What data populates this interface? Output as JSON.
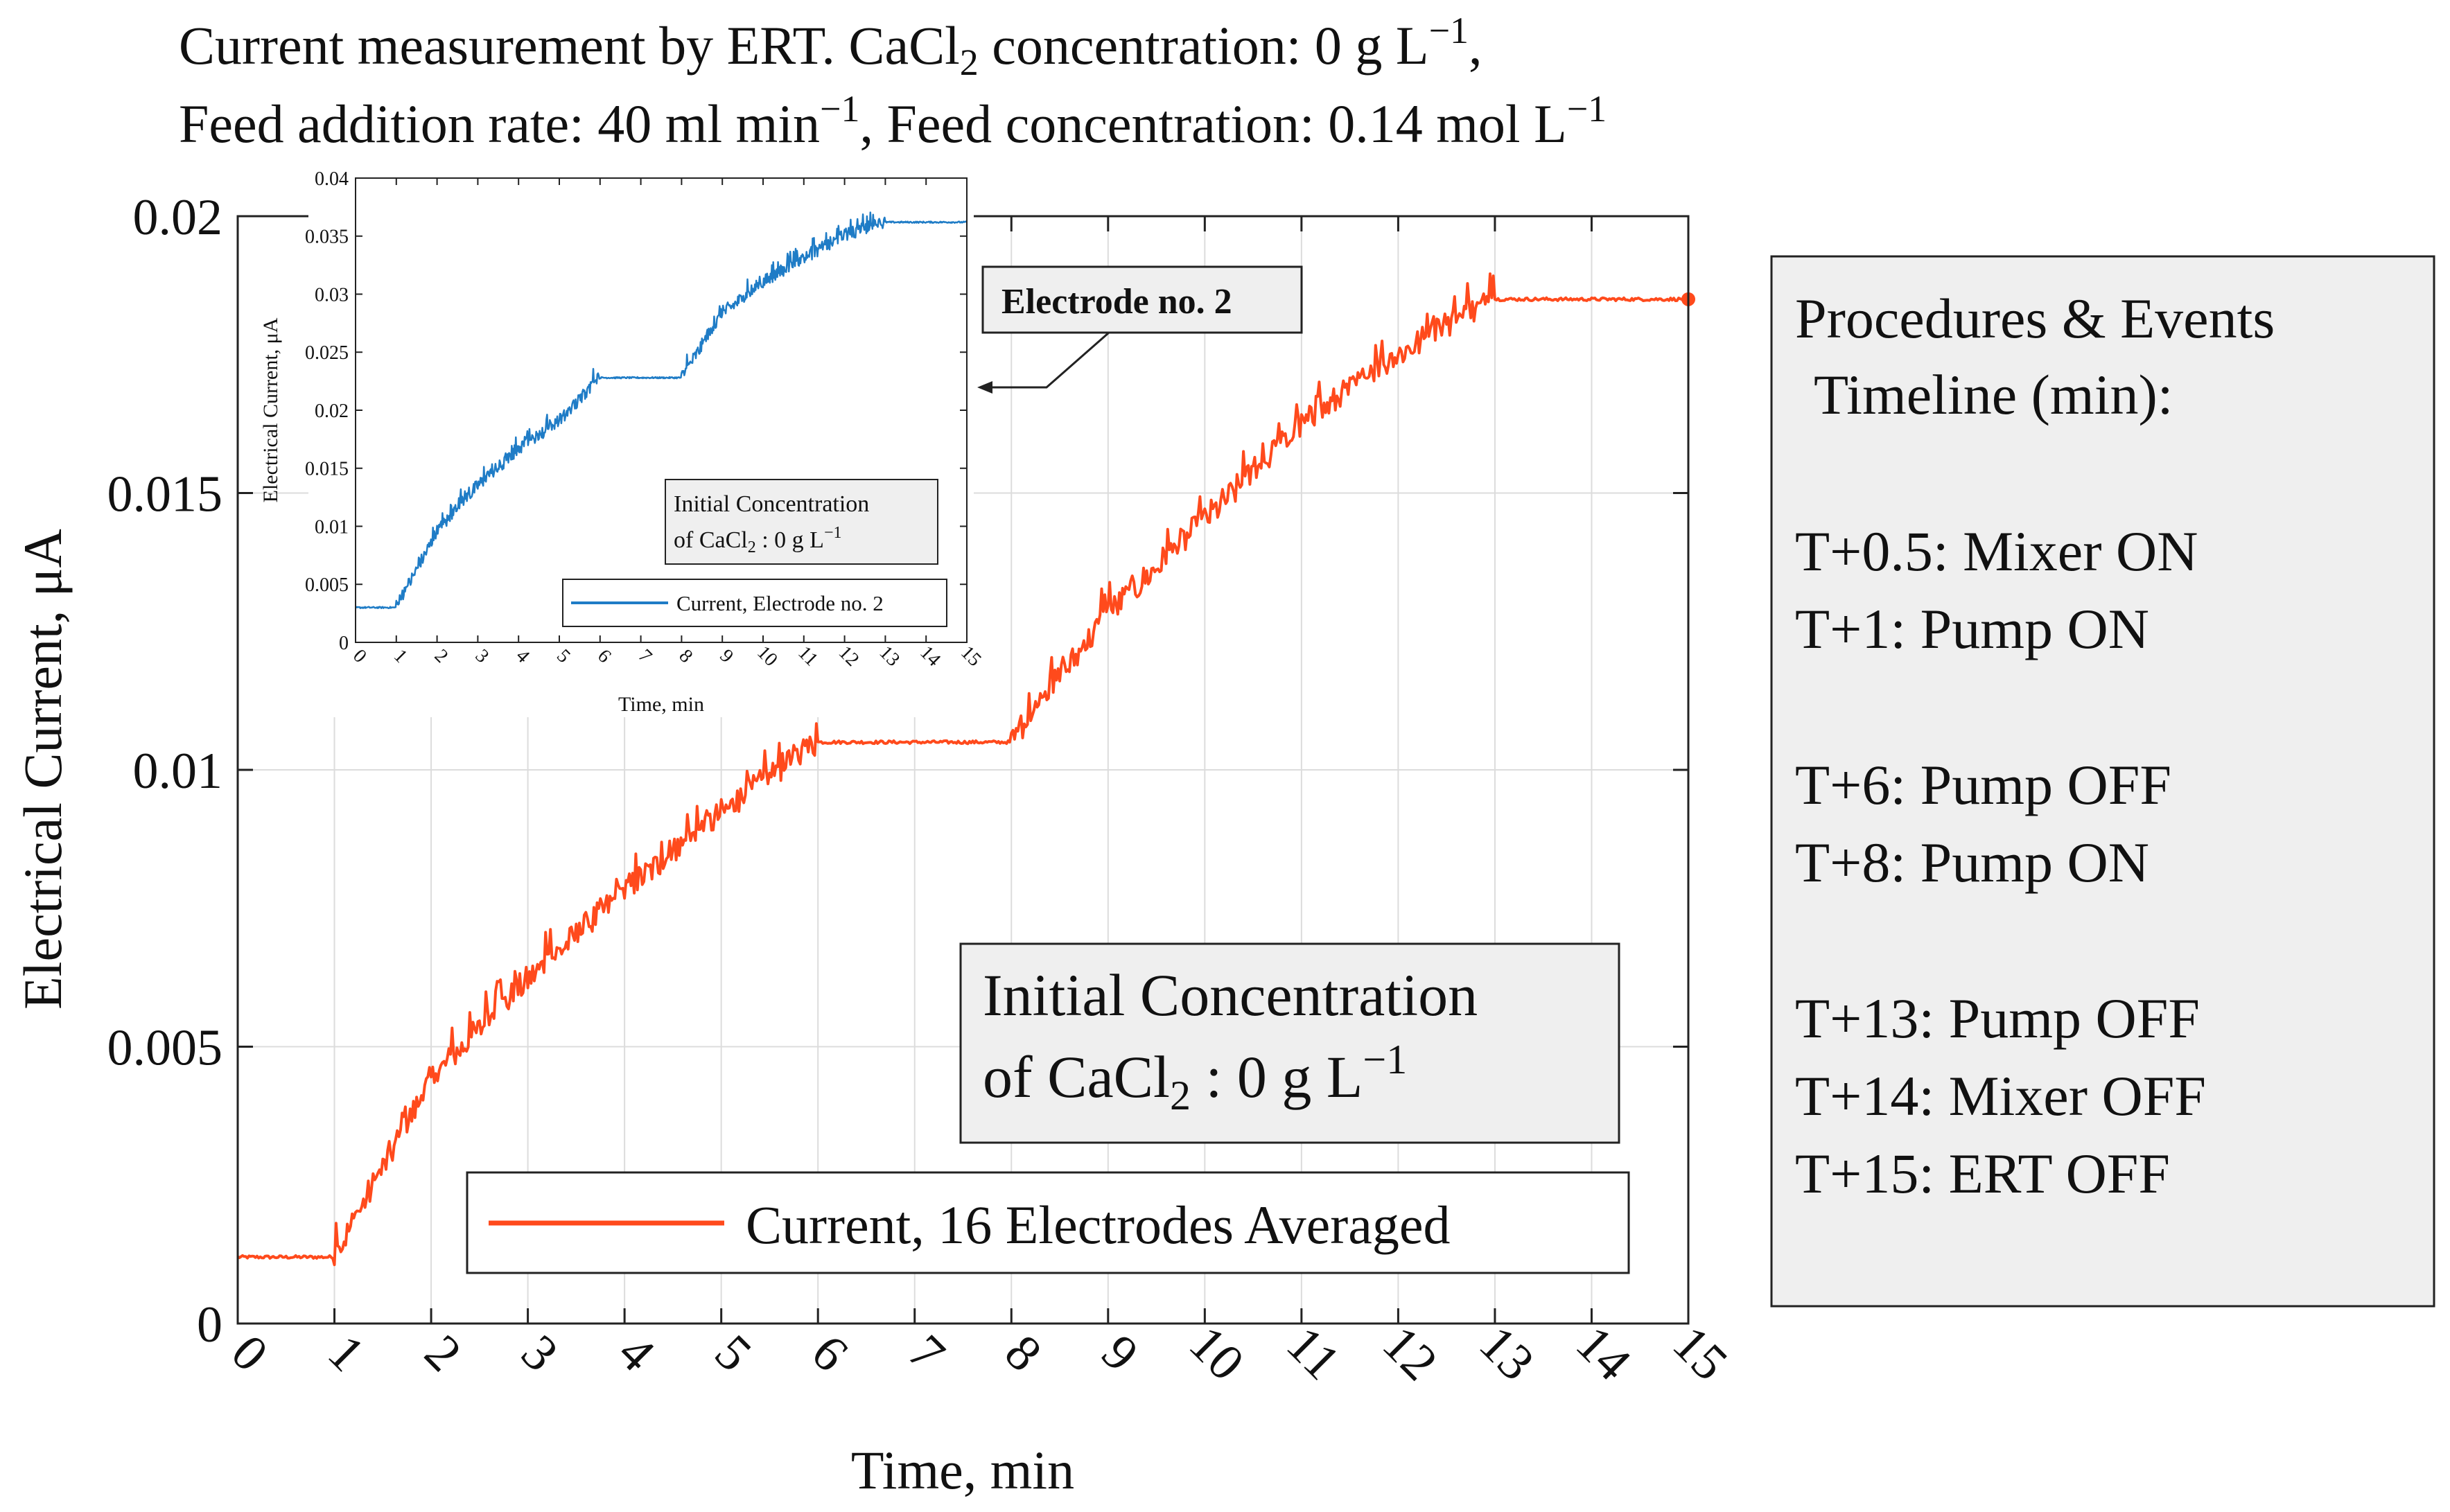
{
  "title_line1": "Current measurement by ERT. CaCl",
  "title_line1_sub": "2",
  "title_line1_rest": " concentration: 0 g L",
  "title_line1_sup": "−1",
  "title_line1_end": ",",
  "title_line2": "Feed addition rate: 40 ml min",
  "title_line2_sup": "−1",
  "title_line2_mid": ", Feed concentration: 0.14 mol L",
  "title_line2_sup2": "−1",
  "colors": {
    "main_series": "#ff4a1c",
    "inset_series": "#1f7cc6",
    "grid": "#dcdcdc",
    "box_fill": "#efefef"
  },
  "chart_data": [
    {
      "id": "main",
      "type": "line",
      "xlabel": "Time, min",
      "ylabel": "Electrical Current, μA",
      "xlim": [
        0,
        15
      ],
      "ylim": [
        0,
        0.02
      ],
      "xticks": [
        "0",
        "1",
        "2",
        "3",
        "4",
        "5",
        "6",
        "7",
        "8",
        "9",
        "10",
        "11",
        "12",
        "13",
        "14",
        "15"
      ],
      "yticks": [
        "0",
        "0.005",
        "0.01",
        "0.015",
        "0.02"
      ],
      "grid": true,
      "series": [
        {
          "name": "Current, 16 Electrodes Averaged",
          "x": [
            0,
            1,
            2,
            3,
            4,
            5,
            6,
            7,
            8,
            9,
            10,
            11,
            12,
            13,
            14,
            15
          ],
          "y": [
            0.0012,
            0.0012,
            0.0044,
            0.0062,
            0.0078,
            0.0092,
            0.0105,
            0.0105,
            0.0105,
            0.0128,
            0.0145,
            0.0162,
            0.0175,
            0.0185,
            0.0185,
            0.0185
          ]
        }
      ],
      "legend": "Current, 16 Electrodes Averaged",
      "annotation_line1": "Initial Concentration",
      "annotation_line2_a": "of CaCl",
      "annotation_line2_sub": "2",
      "annotation_line2_b": " : 0 g L",
      "annotation_line2_sup": "−1"
    },
    {
      "id": "inset",
      "type": "line",
      "xlabel": "Time, min",
      "ylabel": "Electrical Current, μA",
      "xlim": [
        0,
        15
      ],
      "ylim": [
        0,
        0.04
      ],
      "xticks": [
        "0",
        "1",
        "2",
        "3",
        "4",
        "5",
        "6",
        "7",
        "8",
        "9",
        "10",
        "11",
        "12",
        "13",
        "14",
        "15"
      ],
      "yticks": [
        "0",
        "0.005",
        "0.01",
        "0.015",
        "0.02",
        "0.025",
        "0.03",
        "0.035",
        "0.04"
      ],
      "grid": false,
      "series": [
        {
          "name": "Current, Electrode no. 2",
          "x": [
            0,
            1,
            2,
            3,
            4,
            5,
            6,
            7,
            8,
            9,
            10,
            11,
            12,
            13,
            14,
            15
          ],
          "y": [
            0.003,
            0.003,
            0.0095,
            0.0135,
            0.0165,
            0.019,
            0.0228,
            0.0228,
            0.0228,
            0.0283,
            0.031,
            0.033,
            0.035,
            0.0362,
            0.0362,
            0.0362
          ]
        }
      ],
      "legend": "Current, Electrode no. 2",
      "annotation_line1": "Initial Concentration",
      "annotation_line2_a": "of CaCl",
      "annotation_line2_sub": "2",
      "annotation_line2_b": " : 0 g L",
      "annotation_line2_sup": "−1"
    }
  ],
  "callout_label": "Electrode no. 2",
  "timeline": {
    "title_line1": "Procedures & Events",
    "title_line2": "Timeline (min):",
    "events": [
      "T+0.5: Mixer ON",
      "T+1: Pump ON",
      "T+6: Pump OFF",
      "T+8: Pump ON",
      "T+13: Pump OFF",
      "T+14: Mixer OFF",
      "T+15: ERT OFF"
    ]
  }
}
